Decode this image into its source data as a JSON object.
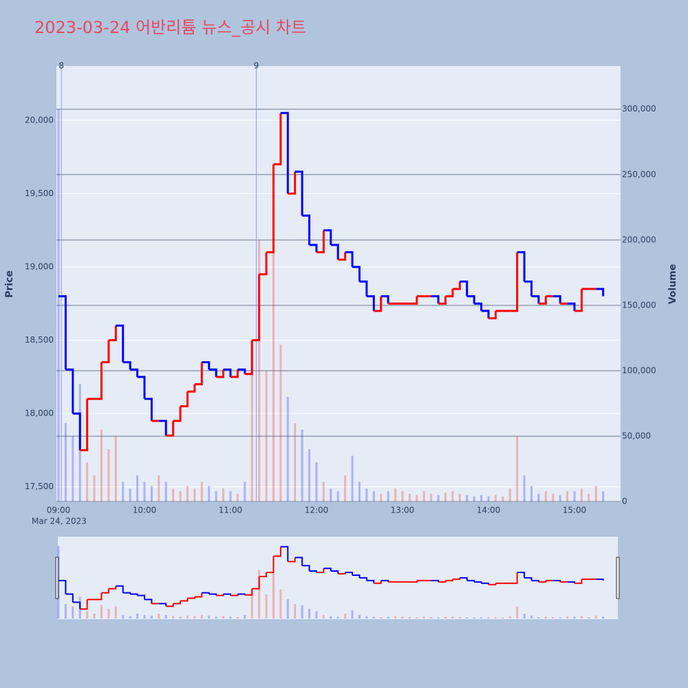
{
  "chart_data": {
    "type": "candlestick-volume",
    "title": "2023-03-24 어반리튬 뉴스_공시 차트",
    "x_date_label": "Mar 24, 2023",
    "y_title": "Price",
    "y2_title": "Volume",
    "increasing_color": "#ff0000",
    "decreasing_color": "#0000ff",
    "xlim": [
      "09:00",
      "15:30"
    ],
    "xticks": [
      "09:00",
      "10:00",
      "11:00",
      "12:00",
      "13:00",
      "14:00",
      "15:00"
    ],
    "ylim": [
      17400,
      20370
    ],
    "yticks": [
      {
        "value": 17500,
        "label": "17,500"
      },
      {
        "value": 18000,
        "label": "18,000"
      },
      {
        "value": 18500,
        "label": "18,500"
      },
      {
        "value": 19000,
        "label": "19,000"
      },
      {
        "value": 19500,
        "label": "19,500"
      },
      {
        "value": 20000,
        "label": "20,000"
      }
    ],
    "y2lim": [
      0,
      333000
    ],
    "y2ticks": [
      0,
      {
        "value": 50000,
        "label": "50,000"
      },
      {
        "value": 100000,
        "label": "100,000"
      },
      {
        "value": 150000,
        "label": "150,000"
      },
      {
        "value": 200000,
        "label": "200,000"
      },
      {
        "value": 250000,
        "label": "250,000"
      },
      {
        "value": 300000,
        "label": "300,000"
      }
    ],
    "annotations": [
      {
        "x": "09:02",
        "text": "8"
      },
      {
        "x": "11:18",
        "text": "9"
      }
    ],
    "x": [
      "09:00",
      "09:05",
      "09:10",
      "09:15",
      "09:20",
      "09:25",
      "09:30",
      "09:35",
      "09:40",
      "09:45",
      "09:50",
      "09:55",
      "10:00",
      "10:05",
      "10:10",
      "10:15",
      "10:20",
      "10:25",
      "10:30",
      "10:35",
      "10:40",
      "10:45",
      "10:50",
      "10:55",
      "11:00",
      "11:05",
      "11:10",
      "11:15",
      "11:20",
      "11:25",
      "11:30",
      "11:35",
      "11:40",
      "11:45",
      "11:50",
      "11:55",
      "12:00",
      "12:05",
      "12:10",
      "12:15",
      "12:20",
      "12:25",
      "12:30",
      "12:35",
      "12:40",
      "12:45",
      "12:50",
      "12:55",
      "13:00",
      "13:05",
      "13:10",
      "13:15",
      "13:20",
      "13:25",
      "13:30",
      "13:35",
      "13:40",
      "13:45",
      "13:50",
      "13:55",
      "14:00",
      "14:05",
      "14:10",
      "14:15",
      "14:20",
      "14:25",
      "14:30",
      "14:35",
      "14:40",
      "14:45",
      "14:50",
      "14:55",
      "15:00",
      "15:05",
      "15:10",
      "15:15",
      "15:20"
    ],
    "series": [
      {
        "name": "Price",
        "values": [
          18800,
          18300,
          18000,
          17750,
          18100,
          18100,
          18350,
          18500,
          18600,
          18350,
          18300,
          18250,
          18100,
          17950,
          17950,
          17850,
          17950,
          18050,
          18150,
          18200,
          18350,
          18300,
          18250,
          18300,
          18250,
          18300,
          18270,
          18500,
          18950,
          19100,
          19700,
          20050,
          19500,
          19650,
          19350,
          19150,
          19100,
          19250,
          19150,
          19050,
          19100,
          19000,
          18900,
          18800,
          18700,
          18800,
          18750,
          18750,
          18750,
          18750,
          18800,
          18800,
          18800,
          18750,
          18800,
          18850,
          18900,
          18800,
          18750,
          18700,
          18650,
          18700,
          18700,
          18700,
          19100,
          18900,
          18800,
          18750,
          18800,
          18800,
          18750,
          18750,
          18700,
          18850,
          18850,
          18850,
          18800
        ]
      },
      {
        "name": "Volume",
        "axis": "y2",
        "values": [
          300000,
          60000,
          50000,
          90000,
          30000,
          20000,
          55000,
          40000,
          50000,
          15000,
          10000,
          20000,
          15000,
          12000,
          20000,
          15000,
          10000,
          8000,
          12000,
          10000,
          15000,
          12000,
          8000,
          10000,
          8000,
          6000,
          15000,
          120000,
          200000,
          100000,
          190000,
          120000,
          80000,
          60000,
          55000,
          40000,
          30000,
          15000,
          10000,
          8000,
          20000,
          35000,
          15000,
          10000,
          8000,
          6000,
          8000,
          10000,
          8000,
          6000,
          5000,
          8000,
          6000,
          5000,
          7000,
          8000,
          6000,
          5000,
          4000,
          5000,
          4000,
          5000,
          4000,
          10000,
          50000,
          20000,
          12000,
          6000,
          8000,
          6000,
          5000,
          8000,
          8000,
          10000,
          6000,
          12000,
          8000
        ]
      }
    ]
  }
}
